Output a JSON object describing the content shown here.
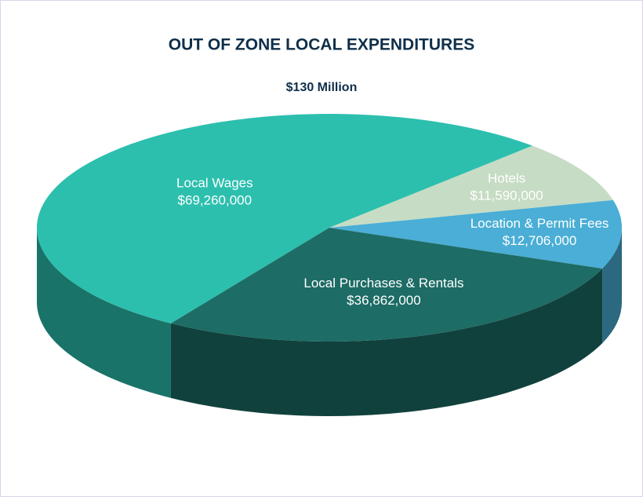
{
  "chart_data": {
    "type": "pie3d",
    "title": "OUT OF ZONE LOCAL EXPENDITURES",
    "subtitle": "$130 Million",
    "categories": [
      "Local Wages",
      "Hotels",
      "Location & Permit Fees",
      "Local Purchases & Rentals"
    ],
    "values": [
      69260000,
      11590000,
      12706000,
      36862000
    ],
    "value_labels": [
      "$69,260,000",
      "$11,590,000",
      "$12,706,000",
      "$36,862,000"
    ],
    "colors": [
      "#2cbfae",
      "#c6dcc4",
      "#4aaed6",
      "#1d6c65"
    ]
  }
}
